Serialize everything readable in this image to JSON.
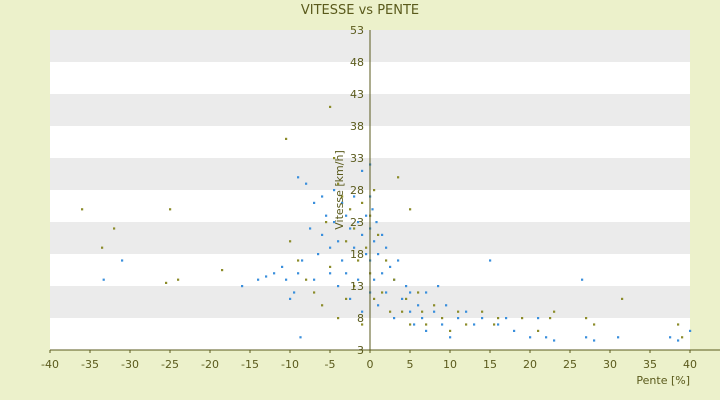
{
  "chart_data": {
    "type": "scatter",
    "title": "VITESSE vs PENTE",
    "xlabel": "Pente [%]",
    "ylabel": "Vitesse [km/h]",
    "xlim": [
      -40,
      40
    ],
    "ylim": [
      3,
      53
    ],
    "x_ticks": [
      -40,
      -35,
      -30,
      -25,
      -20,
      -15,
      -10,
      -5,
      0,
      5,
      10,
      15,
      20,
      25,
      30,
      35,
      40
    ],
    "y_ticks": [
      3,
      8,
      13,
      18,
      23,
      28,
      33,
      38,
      43,
      48,
      53
    ],
    "grid": "horizontal bands",
    "colors": {
      "background": "#ecf1cb",
      "band_light": "#ffffff",
      "band_dark": "#ebebeb",
      "axis": "#5a5a1c",
      "text": "#5a5a1c",
      "series_blue": "#3a8fdc",
      "series_olive": "#8c8c2a"
    },
    "series": [
      {
        "color": "#3a8fdc",
        "points": [
          [
            -33.3,
            14
          ],
          [
            -31,
            17
          ],
          [
            -16,
            13
          ],
          [
            -14,
            14
          ],
          [
            -13,
            14.5
          ],
          [
            -12,
            15
          ],
          [
            -11,
            16
          ],
          [
            -10.5,
            14
          ],
          [
            -10,
            11
          ],
          [
            -9.5,
            12
          ],
          [
            -9,
            30
          ],
          [
            -9,
            15
          ],
          [
            -8.7,
            5
          ],
          [
            -8.5,
            17
          ],
          [
            -8,
            29
          ],
          [
            -7.5,
            22
          ],
          [
            -7,
            26
          ],
          [
            -7,
            14
          ],
          [
            -6.5,
            18
          ],
          [
            -6,
            27
          ],
          [
            -6,
            21
          ],
          [
            -5.5,
            24
          ],
          [
            -5,
            19
          ],
          [
            -5,
            15
          ],
          [
            -4.5,
            28
          ],
          [
            -4.5,
            23
          ],
          [
            -4,
            20
          ],
          [
            -4,
            13
          ],
          [
            -3.5,
            26
          ],
          [
            -3.5,
            17
          ],
          [
            -3,
            24
          ],
          [
            -3,
            15
          ],
          [
            -2.5,
            22
          ],
          [
            -2.5,
            11
          ],
          [
            -2,
            27
          ],
          [
            -2,
            19
          ],
          [
            -1.5,
            23
          ],
          [
            -1.5,
            14
          ],
          [
            -1,
            31
          ],
          [
            -1,
            21
          ],
          [
            -1,
            9
          ],
          [
            -0.5,
            24
          ],
          [
            -0.5,
            18
          ],
          [
            0,
            32
          ],
          [
            0,
            27
          ],
          [
            0,
            22
          ],
          [
            0,
            17
          ],
          [
            0,
            12
          ],
          [
            0.3,
            25
          ],
          [
            0.5,
            20
          ],
          [
            0.5,
            14
          ],
          [
            0.8,
            23
          ],
          [
            1,
            18
          ],
          [
            1,
            10
          ],
          [
            1.5,
            21
          ],
          [
            1.5,
            15
          ],
          [
            2,
            19
          ],
          [
            2,
            12
          ],
          [
            2.5,
            16
          ],
          [
            3,
            14
          ],
          [
            3,
            8
          ],
          [
            3.5,
            17
          ],
          [
            4,
            11
          ],
          [
            4.5,
            13
          ],
          [
            5,
            9
          ],
          [
            5,
            12
          ],
          [
            5.5,
            7
          ],
          [
            6,
            10
          ],
          [
            6.5,
            8
          ],
          [
            7,
            12
          ],
          [
            7,
            6
          ],
          [
            8,
            9
          ],
          [
            8.5,
            13
          ],
          [
            9,
            7
          ],
          [
            9.5,
            10
          ],
          [
            10,
            5
          ],
          [
            11,
            8
          ],
          [
            12,
            9
          ],
          [
            13,
            7
          ],
          [
            14,
            8
          ],
          [
            15,
            17
          ],
          [
            16,
            7
          ],
          [
            17,
            8
          ],
          [
            18,
            6
          ],
          [
            20,
            5
          ],
          [
            21,
            8
          ],
          [
            22,
            5
          ],
          [
            23,
            4.5
          ],
          [
            26.5,
            14
          ],
          [
            27,
            5
          ],
          [
            28,
            4.5
          ],
          [
            31,
            5
          ],
          [
            37.5,
            5
          ],
          [
            38.5,
            4.5
          ],
          [
            40,
            6
          ]
        ]
      },
      {
        "color": "#8c8c2a",
        "points": [
          [
            -36,
            25
          ],
          [
            -33.5,
            19
          ],
          [
            -32,
            22
          ],
          [
            -25,
            25
          ],
          [
            -25.5,
            13.5
          ],
          [
            -24,
            14
          ],
          [
            -18.5,
            15.5
          ],
          [
            -10.5,
            36
          ],
          [
            -10,
            20
          ],
          [
            -9,
            17
          ],
          [
            -8,
            14
          ],
          [
            -7,
            12
          ],
          [
            -6,
            10
          ],
          [
            -5.5,
            23
          ],
          [
            -5,
            41
          ],
          [
            -5,
            16
          ],
          [
            -4.5,
            33
          ],
          [
            -4,
            29
          ],
          [
            -4,
            8
          ],
          [
            -3.5,
            27
          ],
          [
            -3,
            20
          ],
          [
            -3,
            11
          ],
          [
            -2.5,
            25
          ],
          [
            -2,
            22
          ],
          [
            -2,
            13
          ],
          [
            -1.5,
            17
          ],
          [
            -1,
            26
          ],
          [
            -1,
            7
          ],
          [
            -0.5,
            19
          ],
          [
            0,
            24
          ],
          [
            0,
            15
          ],
          [
            0.5,
            28
          ],
          [
            0.5,
            11
          ],
          [
            1,
            21
          ],
          [
            1.5,
            12
          ],
          [
            2,
            17
          ],
          [
            2.5,
            9
          ],
          [
            3,
            14
          ],
          [
            3.5,
            30
          ],
          [
            4,
            9
          ],
          [
            4.5,
            11
          ],
          [
            5,
            25
          ],
          [
            5,
            7
          ],
          [
            6,
            12
          ],
          [
            6.5,
            9
          ],
          [
            7,
            7
          ],
          [
            8,
            10
          ],
          [
            9,
            8
          ],
          [
            10,
            6
          ],
          [
            11,
            9
          ],
          [
            12,
            7
          ],
          [
            14,
            9
          ],
          [
            15.5,
            7
          ],
          [
            16,
            8
          ],
          [
            19,
            8
          ],
          [
            21,
            6
          ],
          [
            22.5,
            8
          ],
          [
            23,
            9
          ],
          [
            27,
            8
          ],
          [
            28,
            7
          ],
          [
            31.5,
            11
          ],
          [
            38.5,
            7
          ],
          [
            39,
            5
          ]
        ]
      }
    ]
  }
}
